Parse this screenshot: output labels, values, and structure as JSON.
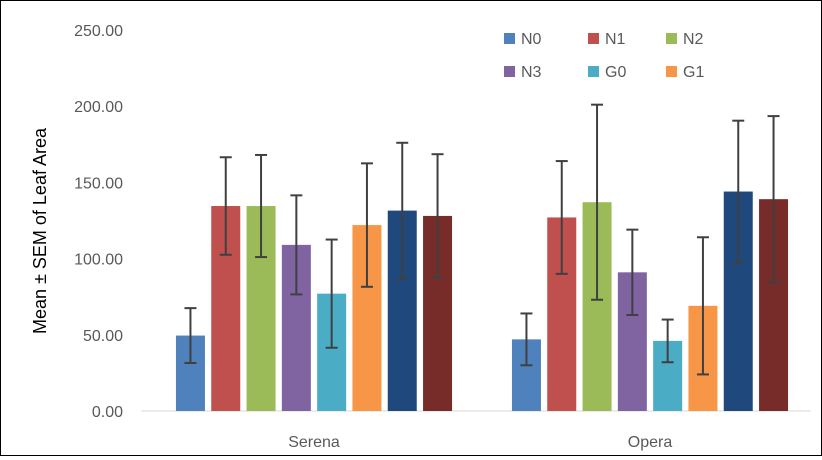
{
  "chart_data": {
    "type": "bar",
    "title": "",
    "xlabel": "",
    "ylabel": "Mean ± SEM of Leaf Area",
    "ylim": [
      0,
      250
    ],
    "yticks": [
      "0.00",
      "50.00",
      "100.00",
      "150.00",
      "200.00",
      "250.00"
    ],
    "grid": false,
    "legend_position": "top-right",
    "categories": [
      "Serena",
      "Opera"
    ],
    "series": [
      {
        "name": "N0",
        "color": "#4f81bd",
        "values": [
          49.5,
          47
        ],
        "err": [
          18,
          17
        ]
      },
      {
        "name": "N1",
        "color": "#c0504d",
        "values": [
          134.5,
          127
        ],
        "err": [
          32,
          37
        ]
      },
      {
        "name": "N2",
        "color": "#9bbb59",
        "values": [
          134.5,
          137
        ],
        "err": [
          33.5,
          64
        ]
      },
      {
        "name": "N3",
        "color": "#8064a2",
        "values": [
          109,
          91
        ],
        "err": [
          32.5,
          28
        ]
      },
      {
        "name": "G0",
        "color": "#4bacc6",
        "values": [
          77,
          46
        ],
        "err": [
          35.5,
          14
        ]
      },
      {
        "name": "G1",
        "color": "#f79646",
        "values": [
          122,
          69
        ],
        "err": [
          40.5,
          45
        ]
      },
      {
        "name": "",
        "color": "#1f497d",
        "values": [
          131.5,
          144
        ],
        "err": [
          44.5,
          46.5
        ]
      },
      {
        "name": "",
        "color": "#772c2a",
        "values": [
          128,
          139
        ],
        "err": [
          40.5,
          54.5
        ]
      }
    ]
  }
}
